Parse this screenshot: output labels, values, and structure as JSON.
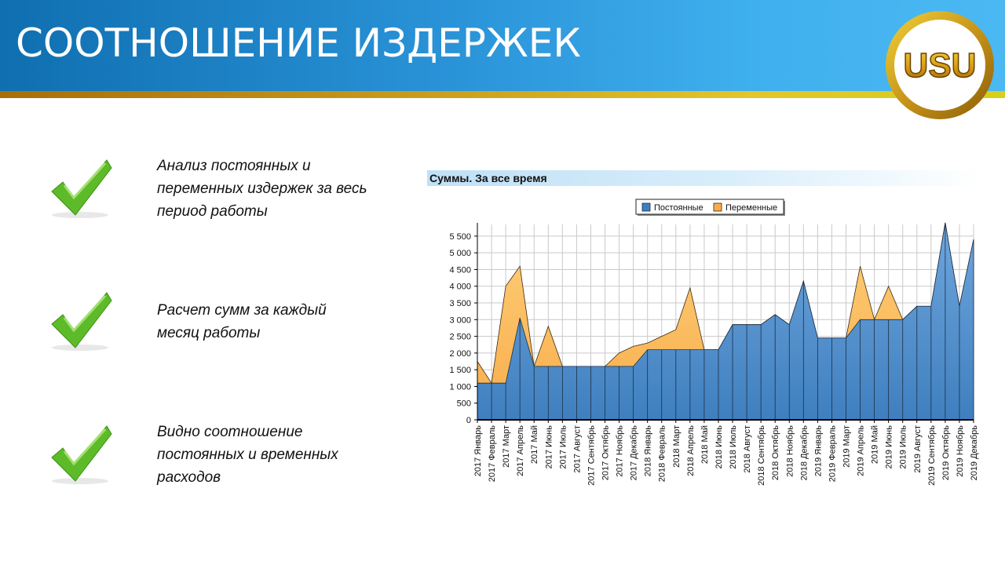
{
  "header": {
    "title": "СООТНОШЕНИЕ ИЗДЕРЖЕК",
    "logo_text": "USU"
  },
  "bullets": [
    {
      "text": "Анализ постоянных и переменных издержек за весь период работы",
      "lines": [
        "Анализ постоянных и",
        "переменных издержек за весь",
        "период работы"
      ]
    },
    {
      "text": "Расчет сумм за каждый месяц работы",
      "lines": [
        "Расчет сумм за каждый",
        "месяц работы"
      ]
    },
    {
      "text": "Видно соотношение постоянных и временных расходов",
      "lines": [
        "Видно соотношение",
        "постоянных и временных",
        "расходов"
      ]
    }
  ],
  "colors": {
    "fixed": "#3f7fbf",
    "variable": "#f7ad4b",
    "check": "#5dbb2a",
    "header": "#2a93d8",
    "stripe": "#c79a1a"
  },
  "chart_data": {
    "type": "area",
    "title": "Суммы. За все время",
    "legend_position": "top-center",
    "grid": true,
    "ylim": [
      0,
      5850
    ],
    "yticks": [
      0,
      500,
      1000,
      1500,
      2000,
      2500,
      3000,
      3500,
      4000,
      4500,
      5000,
      5500
    ],
    "ytick_labels": [
      "0",
      "500",
      "1 000",
      "1 500",
      "2 000",
      "2 500",
      "3 000",
      "3 500",
      "4 000",
      "4 500",
      "5 000",
      "5 500"
    ],
    "categories": [
      "2017 Январь",
      "2017 Февраль",
      "2017 Март",
      "2017 Апрель",
      "2017 Май",
      "2017 Июнь",
      "2017 Июль",
      "2017 Август",
      "2017 Сентябрь",
      "2017 Октябрь",
      "2017 Ноябрь",
      "2017 Декабрь",
      "2018 Январь",
      "2018 Февраль",
      "2018 Март",
      "2018 Апрель",
      "2018 Май",
      "2018 Июнь",
      "2018 Июль",
      "2018 Август",
      "2018 Сентябрь",
      "2018 Октябрь",
      "2018 Ноябрь",
      "2018 Декабрь",
      "2019 Январь",
      "2019 Февраль",
      "2019 Март",
      "2019 Апрель",
      "2019 Май",
      "2019 Июнь",
      "2019 Июль",
      "2019 Август",
      "2019 Сентябрь",
      "2019 Октябрь",
      "2019 Ноябрь",
      "2019 Декабрь"
    ],
    "stacked": true,
    "series": [
      {
        "name": "Постоянные",
        "values": [
          1100,
          1100,
          1100,
          3050,
          1600,
          1600,
          1600,
          1600,
          1600,
          1600,
          1600,
          1600,
          2100,
          2100,
          2100,
          2100,
          2100,
          2100,
          2850,
          2850,
          2850,
          3150,
          2850,
          4150,
          2450,
          2450,
          2450,
          3000,
          3000,
          3000,
          3000,
          3400,
          3400,
          5900,
          3400,
          5400
        ]
      },
      {
        "name": "Переменные",
        "values": [
          650,
          0,
          2900,
          1550,
          0,
          1200,
          0,
          0,
          0,
          0,
          400,
          600,
          200,
          400,
          600,
          1850,
          0,
          0,
          0,
          0,
          0,
          0,
          0,
          0,
          0,
          0,
          0,
          1600,
          0,
          1000,
          0,
          0,
          0,
          0,
          0,
          0
        ]
      }
    ]
  }
}
